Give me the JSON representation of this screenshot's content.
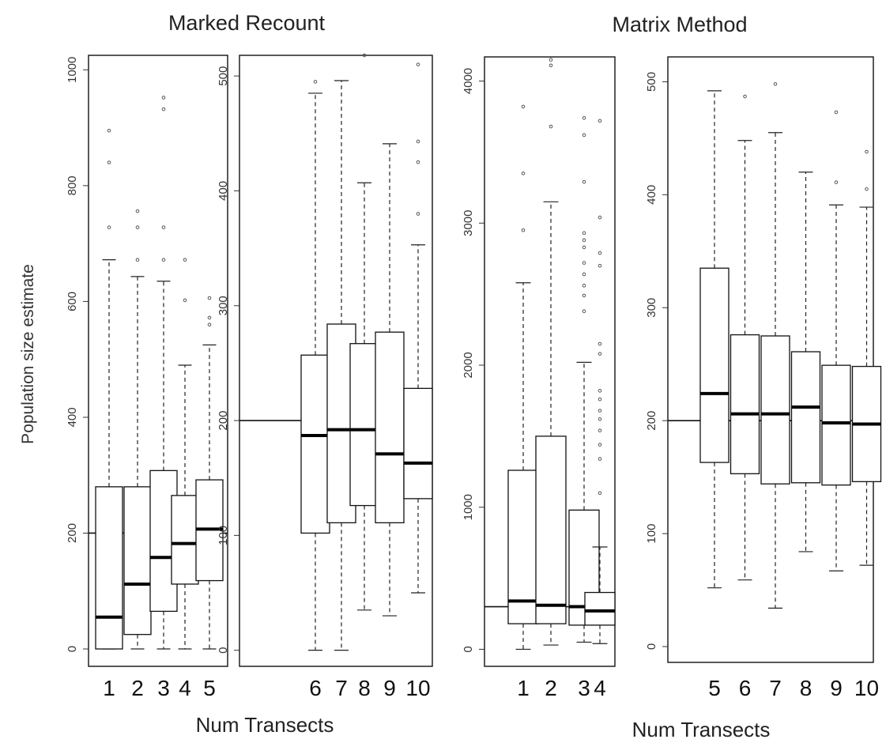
{
  "figure": {
    "titles": [
      "Marked Recount",
      "Matrix Method"
    ],
    "xlabel": "Num Transects",
    "ylabel": "Population size estimate"
  },
  "chart_data": [
    {
      "type": "boxplot",
      "group": "Marked Recount",
      "xlabel": "Num Transects",
      "ylabel": "Population size estimate",
      "ylim": [
        -30,
        1025
      ],
      "yticks": [
        0,
        200,
        400,
        600,
        800,
        1000
      ],
      "reference_line": 200,
      "categories": [
        "1",
        "2",
        "3",
        "4",
        "5"
      ],
      "boxes": [
        {
          "whisker_low": 0,
          "q1": 0,
          "median": 55,
          "q3": 280,
          "whisker_high": 672,
          "outliers": [
            728,
            840,
            895
          ]
        },
        {
          "whisker_low": 0,
          "q1": 25,
          "median": 112,
          "q3": 280,
          "whisker_high": 643,
          "outliers": [
            672,
            728,
            756
          ]
        },
        {
          "whisker_low": 0,
          "q1": 65,
          "median": 158,
          "q3": 308,
          "whisker_high": 635,
          "outliers": [
            672,
            728,
            932,
            952
          ]
        },
        {
          "whisker_low": 0,
          "q1": 112,
          "median": 182,
          "q3": 265,
          "whisker_high": 490,
          "outliers": [
            602,
            672
          ]
        },
        {
          "whisker_low": 0,
          "q1": 118,
          "median": 207,
          "q3": 292,
          "whisker_high": 525,
          "outliers": [
            560,
            572,
            606
          ]
        }
      ]
    },
    {
      "type": "boxplot",
      "group": "Marked Recount",
      "xlabel": "Num Transects",
      "ylabel": "",
      "ylim": [
        -14,
        518
      ],
      "yticks": [
        0,
        100,
        200,
        300,
        400,
        500
      ],
      "reference_line": 200,
      "categories": [
        "6",
        "7",
        "8",
        "9",
        "10"
      ],
      "boxes": [
        {
          "whisker_low": 0,
          "q1": 102,
          "median": 187,
          "q3": 257,
          "whisker_high": 485,
          "outliers": [
            495
          ]
        },
        {
          "whisker_low": 0,
          "q1": 111,
          "median": 192,
          "q3": 284,
          "whisker_high": 496,
          "outliers": []
        },
        {
          "whisker_low": 35,
          "q1": 126,
          "median": 192,
          "q3": 267,
          "whisker_high": 407,
          "outliers": [
            518
          ]
        },
        {
          "whisker_low": 30,
          "q1": 111,
          "median": 171,
          "q3": 277,
          "whisker_high": 441,
          "outliers": []
        },
        {
          "whisker_low": 50,
          "q1": 132,
          "median": 163,
          "q3": 228,
          "whisker_high": 353,
          "outliers": [
            380,
            425,
            443,
            510
          ]
        }
      ]
    },
    {
      "type": "boxplot",
      "group": "Matrix Method",
      "xlabel": "Num Transects",
      "ylabel": "",
      "ylim": [
        -120,
        4170
      ],
      "yticks": [
        0,
        1000,
        2000,
        3000,
        4000
      ],
      "reference_line": 300,
      "categories": [
        "1",
        "2",
        "3",
        "4"
      ],
      "boxes": [
        {
          "whisker_low": 0,
          "q1": 180,
          "median": 340,
          "q3": 1260,
          "whisker_high": 2580,
          "outliers": [
            2950,
            3350,
            3820
          ]
        },
        {
          "whisker_low": 30,
          "q1": 180,
          "median": 310,
          "q3": 1500,
          "whisker_high": 3150,
          "outliers": [
            3680,
            4110,
            4150
          ]
        },
        {
          "whisker_low": 50,
          "q1": 170,
          "median": 300,
          "q3": 980,
          "whisker_high": 2020,
          "outliers": [
            2380,
            2490,
            2560,
            2640,
            2720,
            2830,
            2880,
            2930,
            3290,
            3620,
            3740
          ]
        },
        {
          "whisker_low": 40,
          "q1": 170,
          "median": 270,
          "q3": 400,
          "whisker_high": 720,
          "outliers": [
            1100,
            1340,
            1440,
            1540,
            1620,
            1680,
            1760,
            1820,
            2080,
            2150,
            2700,
            2790,
            3040,
            3720
          ]
        }
      ]
    },
    {
      "type": "boxplot",
      "group": "Matrix Method",
      "xlabel": "Num Transects",
      "ylabel": "",
      "ylim": [
        -14,
        522
      ],
      "yticks": [
        0,
        100,
        200,
        300,
        400,
        500
      ],
      "reference_line": 200,
      "categories": [
        "5",
        "6",
        "7",
        "8",
        "9",
        "10"
      ],
      "boxes": [
        {
          "whisker_low": 52,
          "q1": 163,
          "median": 224,
          "q3": 335,
          "whisker_high": 492,
          "outliers": []
        },
        {
          "whisker_low": 59,
          "q1": 153,
          "median": 206,
          "q3": 276,
          "whisker_high": 448,
          "outliers": [
            487
          ]
        },
        {
          "whisker_low": 34,
          "q1": 144,
          "median": 206,
          "q3": 275,
          "whisker_high": 455,
          "outliers": [
            498
          ]
        },
        {
          "whisker_low": 84,
          "q1": 145,
          "median": 212,
          "q3": 261,
          "whisker_high": 420,
          "outliers": []
        },
        {
          "whisker_low": 67,
          "q1": 143,
          "median": 198,
          "q3": 249,
          "whisker_high": 391,
          "outliers": [
            411,
            473
          ]
        },
        {
          "whisker_low": 72,
          "q1": 146,
          "median": 197,
          "q3": 248,
          "whisker_high": 389,
          "outliers": [
            405,
            438
          ]
        }
      ]
    }
  ]
}
